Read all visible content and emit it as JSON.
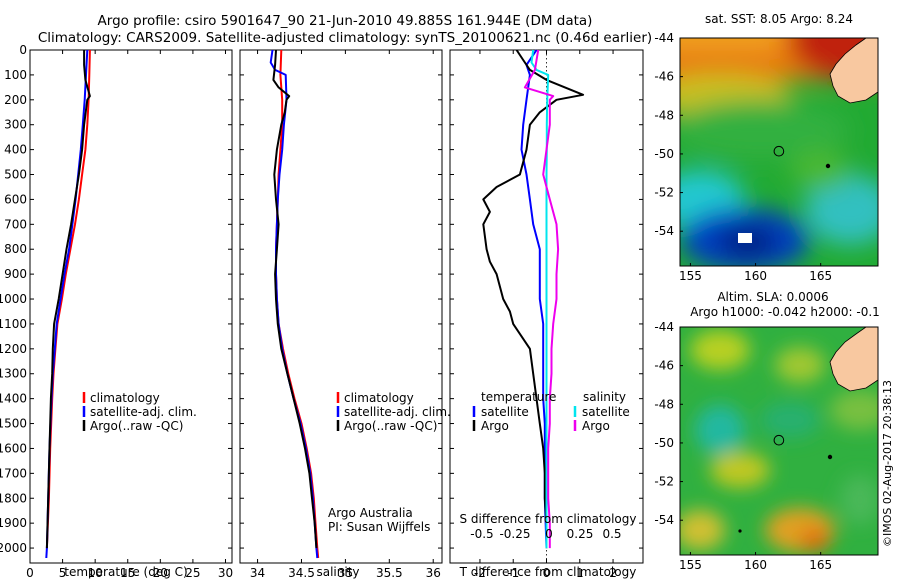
{
  "header": {
    "line1": "Argo profile: csiro 5901647_90 21-Jun-2010 49.885S 161.944E (DM data)",
    "line2": "Climatology: CARS2009. Satellite-adjusted climatology: synTS_20100621.nc (0.46d earlier)"
  },
  "colors": {
    "climatology": "#ff0000",
    "satellite": "#0000ff",
    "argo": "#000000",
    "salinity_satellite": "#00e5ee",
    "salinity_argo": "#ee00ee",
    "land": "#f8c8a0"
  },
  "depth_axis": {
    "ticks": [
      0,
      100,
      200,
      300,
      400,
      500,
      600,
      700,
      800,
      900,
      1000,
      1100,
      1200,
      1300,
      1400,
      1500,
      1600,
      1700,
      1800,
      1900,
      2000
    ],
    "ylim": [
      0,
      2060
    ]
  },
  "legend_profiles": {
    "items": [
      {
        "label": "climatology",
        "color": "#ff0000"
      },
      {
        "label": "satellite-adj. clim.",
        "color": "#0000ff"
      },
      {
        "label": "Argo(..raw -QC)",
        "color": "#000000"
      }
    ]
  },
  "legend_diff": {
    "t_header": "temperature",
    "s_header": "salinity",
    "t_items": [
      {
        "label": "satellite",
        "color": "#0000ff"
      },
      {
        "label": "Argo",
        "color": "#000000"
      }
    ],
    "s_items": [
      {
        "label": "satellite",
        "color": "#00e5ee"
      },
      {
        "label": "Argo",
        "color": "#ee00ee"
      }
    ]
  },
  "credits": {
    "line1": "Argo Australia",
    "line2": "PI: Susan Wijffels"
  },
  "chart_data": [
    {
      "type": "line",
      "xlabel": "temperature (deg C)",
      "ylim": [
        0,
        2060
      ],
      "xlim": [
        0,
        31
      ],
      "x_ticks": [
        0,
        5,
        10,
        15,
        20,
        25,
        30
      ],
      "series": [
        {
          "name": "climatology",
          "color": "#ff0000",
          "depth": [
            0,
            100,
            200,
            300,
            400,
            500,
            600,
            700,
            800,
            900,
            1000,
            1100,
            1200,
            1300,
            1400,
            1600,
            1800,
            2000
          ],
          "values": [
            9.2,
            9.1,
            9.0,
            8.8,
            8.5,
            8.0,
            7.5,
            6.9,
            6.2,
            5.5,
            4.9,
            4.2,
            3.9,
            3.6,
            3.4,
            3.1,
            2.9,
            2.6
          ]
        },
        {
          "name": "satellite-adj. clim.",
          "color": "#0000ff",
          "depth": [
            0,
            100,
            200,
            300,
            400,
            500,
            600,
            700,
            800,
            900,
            1000,
            1100,
            1200,
            1300,
            1400,
            1600,
            1800,
            2000,
            2040
          ],
          "values": [
            8.8,
            8.6,
            8.4,
            8.1,
            7.8,
            7.4,
            7.0,
            6.5,
            6.0,
            5.3,
            4.7,
            4.1,
            3.8,
            3.5,
            3.3,
            3.0,
            2.8,
            2.6,
            2.5
          ]
        },
        {
          "name": "Argo(..raw -QC)",
          "color": "#000000",
          "depth": [
            0,
            60,
            120,
            185,
            200,
            300,
            400,
            500,
            600,
            700,
            800,
            900,
            1000,
            1100,
            1200,
            1300,
            1400,
            1500,
            1600,
            1800,
            2000
          ],
          "values": [
            8.3,
            8.3,
            8.5,
            9.2,
            8.8,
            8.3,
            8.0,
            7.5,
            6.9,
            6.3,
            5.6,
            5.0,
            4.4,
            3.7,
            3.5,
            3.4,
            3.2,
            3.1,
            3.0,
            2.8,
            2.6
          ]
        }
      ]
    },
    {
      "type": "line",
      "xlabel": "salinity",
      "ylim": [
        0,
        2060
      ],
      "xlim": [
        33.8,
        36.1
      ],
      "x_ticks": [
        34,
        34.5,
        35,
        35.5,
        36
      ],
      "series": [
        {
          "name": "climatology",
          "color": "#ff0000",
          "depth": [
            0,
            100,
            200,
            300,
            400,
            500,
            600,
            700,
            800,
            900,
            1000,
            1100,
            1200,
            1300,
            1400,
            1500,
            1600,
            1700,
            1800,
            1900,
            2000,
            2040
          ],
          "values": [
            34.27,
            34.26,
            34.28,
            34.28,
            34.26,
            34.24,
            34.23,
            34.22,
            34.21,
            34.21,
            34.22,
            34.24,
            34.29,
            34.35,
            34.42,
            34.5,
            34.56,
            34.61,
            34.64,
            34.66,
            34.68,
            34.69
          ]
        },
        {
          "name": "satellite-adj. clim.",
          "color": "#0000ff",
          "depth": [
            0,
            50,
            80,
            100,
            200,
            300,
            400,
            500,
            600,
            700,
            800,
            900,
            1000,
            1100,
            1200,
            1300,
            1400,
            1500,
            1600,
            1700,
            1800,
            1900,
            2000,
            2040
          ],
          "values": [
            34.17,
            34.15,
            34.2,
            34.32,
            34.33,
            34.3,
            34.28,
            34.25,
            34.23,
            34.22,
            34.21,
            34.21,
            34.22,
            34.24,
            34.28,
            34.34,
            34.41,
            34.49,
            34.55,
            34.6,
            34.63,
            34.65,
            34.67,
            34.68
          ]
        },
        {
          "name": "Argo(..raw -QC)",
          "color": "#000000",
          "depth": [
            0,
            60,
            120,
            150,
            185,
            200,
            250,
            300,
            400,
            500,
            600,
            700,
            800,
            900,
            1000,
            1100,
            1200,
            1300,
            1400,
            1500,
            1600,
            1700,
            1800,
            1900,
            2000
          ],
          "values": [
            34.21,
            34.2,
            34.18,
            34.24,
            34.36,
            34.33,
            34.31,
            34.27,
            34.22,
            34.19,
            34.21,
            34.24,
            34.22,
            34.2,
            34.21,
            34.23,
            34.27,
            34.34,
            34.41,
            34.48,
            34.54,
            34.59,
            34.62,
            34.65,
            34.67
          ]
        }
      ]
    },
    {
      "type": "line",
      "xlabel": "T difference from climatology",
      "secondary_xlabel": "S difference from climatology",
      "ylim": [
        0,
        2060
      ],
      "xlim": [
        -2.9,
        2.9
      ],
      "x_ticks": [
        -2,
        -1,
        0,
        1,
        2
      ],
      "secondary_x_ticks": [
        "-0.5",
        "-0.25",
        "0",
        "0.25",
        "0.5"
      ],
      "series": [
        {
          "name": "temperature satellite",
          "color": "#0000ff",
          "depth": [
            0,
            60,
            100,
            200,
            300,
            400,
            500,
            600,
            700,
            800,
            900,
            1000,
            1100,
            1200,
            1300,
            1400,
            1500,
            1600,
            1800,
            2000
          ],
          "values": [
            -0.3,
            -0.6,
            -0.5,
            -0.6,
            -0.7,
            -0.75,
            -0.6,
            -0.5,
            -0.4,
            -0.2,
            -0.2,
            -0.2,
            -0.1,
            -0.1,
            -0.1,
            -0.1,
            -0.05,
            -0.05,
            -0.05,
            0.0
          ]
        },
        {
          "name": "temperature Argo",
          "color": "#000000",
          "depth": [
            0,
            40,
            80,
            120,
            180,
            200,
            250,
            300,
            400,
            500,
            550,
            600,
            650,
            700,
            800,
            850,
            900,
            1000,
            1050,
            1100,
            1200,
            1300,
            1400,
            1500,
            1600,
            1700,
            1800,
            1900,
            2000
          ],
          "values": [
            -0.9,
            -0.7,
            -0.5,
            0.0,
            1.1,
            0.3,
            -0.2,
            -0.5,
            -0.6,
            -0.8,
            -1.5,
            -1.9,
            -1.7,
            -1.9,
            -1.8,
            -1.7,
            -1.5,
            -1.3,
            -1.1,
            -1.0,
            -0.5,
            -0.4,
            -0.3,
            -0.2,
            -0.1,
            -0.05,
            -0.05,
            0.0,
            0.0
          ]
        },
        {
          "name": "salinity satellite",
          "color": "#00e5ee",
          "depth": [
            0,
            50,
            80,
            100,
            200,
            300,
            400,
            500,
            600,
            700,
            800,
            900,
            1000,
            1100,
            1200,
            1300,
            1400,
            1500,
            1600,
            1700,
            1800,
            1900,
            2000
          ],
          "values": [
            -0.4,
            -0.45,
            -0.3,
            0.05,
            0.02,
            0.01,
            0.01,
            0.0,
            0.0,
            0.0,
            0.0,
            0.0,
            0.0,
            0.0,
            0.0,
            0.0,
            0.0,
            0.0,
            0.0,
            0.0,
            0.0,
            0.0,
            0.0
          ]
        },
        {
          "name": "salinity Argo",
          "color": "#ee00ee",
          "depth": [
            0,
            80,
            150,
            185,
            200,
            300,
            400,
            500,
            600,
            700,
            800,
            900,
            1000,
            1100,
            1200,
            1300,
            1400,
            1500,
            1600,
            1700,
            1800,
            1900,
            2000
          ],
          "values": [
            -0.25,
            -0.35,
            -0.65,
            0.2,
            0.1,
            0.1,
            0.0,
            -0.1,
            0.1,
            0.3,
            0.35,
            0.3,
            0.3,
            0.2,
            0.15,
            0.15,
            0.1,
            0.1,
            0.05,
            0.05,
            0.05,
            0.1,
            0.1
          ]
        }
      ]
    },
    {
      "type": "heatmap",
      "title": "sat. SST: 8.05  Argo: 8.24",
      "xlim": [
        154.2,
        169.4
      ],
      "ylim": [
        -55.8,
        -44
      ],
      "x_ticks": [
        155,
        160,
        165
      ],
      "y_ticks": [
        -44,
        -46,
        -48,
        -50,
        -52,
        -54
      ],
      "marker": {
        "lon": 161.944,
        "lat": -49.885
      }
    },
    {
      "type": "heatmap",
      "title_line1": "Altim. SLA: 0.0006",
      "title_line2": "Argo h1000: -0.042 h2000: -0.1",
      "xlim": [
        154.2,
        169.4
      ],
      "ylim": [
        -55.8,
        -44
      ],
      "x_ticks": [
        155,
        160,
        165
      ],
      "y_ticks": [
        -44,
        -46,
        -48,
        -50,
        -52,
        -54
      ],
      "marker": {
        "lon": 161.944,
        "lat": -49.885
      },
      "side_label": "©IMOS 02-Aug-2017 20:38:13"
    }
  ]
}
